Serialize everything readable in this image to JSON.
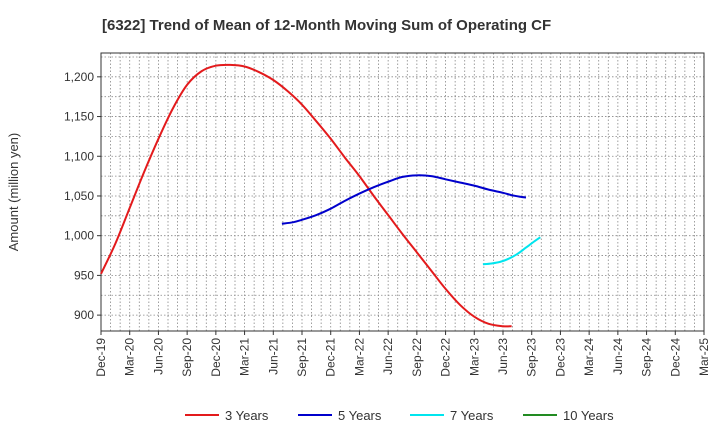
{
  "chart_data": {
    "type": "line",
    "title": "[6322]  Trend of Mean of 12-Month Moving Sum of Operating CF",
    "xlabel": "",
    "ylabel": "Amount (million yen)",
    "ylim": [
      880,
      1230
    ],
    "yticks": [
      900,
      950,
      1000,
      1050,
      1100,
      1150,
      1200
    ],
    "ytick_labels": [
      "900",
      "950",
      "1,000",
      "1,050",
      "1,100",
      "1,150",
      "1,200"
    ],
    "x_tick_labels": [
      "Dec-19",
      "Mar-20",
      "Jun-20",
      "Sep-20",
      "Dec-20",
      "Mar-21",
      "Jun-21",
      "Sep-21",
      "Dec-21",
      "Mar-22",
      "Jun-22",
      "Sep-22",
      "Dec-22",
      "Mar-23",
      "Jun-23",
      "Sep-23",
      "Dec-23",
      "Mar-24",
      "Jun-24",
      "Sep-24",
      "Dec-24",
      "Mar-25"
    ],
    "grid": true,
    "legend_position": "bottom",
    "series": [
      {
        "name": "3 Years",
        "color": "#e31a1c",
        "points": [
          [
            0,
            952
          ],
          [
            0.5,
            990
          ],
          [
            1,
            1035
          ],
          [
            1.5,
            1080
          ],
          [
            2,
            1122
          ],
          [
            2.5,
            1160
          ],
          [
            3,
            1190
          ],
          [
            3.5,
            1207
          ],
          [
            4,
            1214
          ],
          [
            4.5,
            1215
          ],
          [
            5,
            1213
          ],
          [
            5.5,
            1206
          ],
          [
            6,
            1196
          ],
          [
            6.5,
            1182
          ],
          [
            7,
            1165
          ],
          [
            7.5,
            1144
          ],
          [
            8,
            1122
          ],
          [
            8.5,
            1098
          ],
          [
            9,
            1075
          ],
          [
            9.5,
            1050
          ],
          [
            10,
            1026
          ],
          [
            10.5,
            1002
          ],
          [
            11,
            979
          ],
          [
            11.5,
            956
          ],
          [
            12,
            933
          ],
          [
            12.5,
            913
          ],
          [
            13,
            898
          ],
          [
            13.5,
            889
          ],
          [
            14,
            886
          ],
          [
            14.3,
            886
          ]
        ]
      },
      {
        "name": "5 Years",
        "color": "#0000cc",
        "points": [
          [
            6.3,
            1015
          ],
          [
            6.7,
            1017
          ],
          [
            7,
            1020
          ],
          [
            7.5,
            1026
          ],
          [
            8,
            1034
          ],
          [
            8.5,
            1044
          ],
          [
            9,
            1053
          ],
          [
            9.5,
            1061
          ],
          [
            10,
            1068
          ],
          [
            10.5,
            1074
          ],
          [
            11,
            1076
          ],
          [
            11.5,
            1075
          ],
          [
            12,
            1071
          ],
          [
            12.5,
            1067
          ],
          [
            13,
            1063
          ],
          [
            13.5,
            1058
          ],
          [
            14,
            1054
          ],
          [
            14.3,
            1051
          ],
          [
            14.6,
            1049
          ],
          [
            14.8,
            1048
          ]
        ]
      },
      {
        "name": "7 Years",
        "color": "#00e5ee",
        "points": [
          [
            13.3,
            964
          ],
          [
            13.6,
            965
          ],
          [
            13.9,
            967
          ],
          [
            14.2,
            971
          ],
          [
            14.5,
            977
          ],
          [
            14.8,
            985
          ],
          [
            15.1,
            993
          ],
          [
            15.3,
            998
          ]
        ]
      },
      {
        "name": "10 Years",
        "color": "#228b22",
        "points": []
      }
    ]
  }
}
